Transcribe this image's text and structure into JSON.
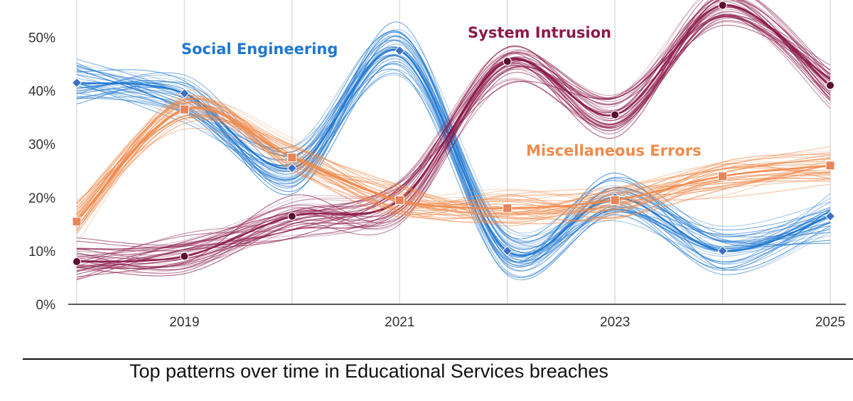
{
  "chart_data": {
    "type": "line",
    "title": "Top patterns over time in Educational Services breaches",
    "xlabel": "",
    "ylabel": "",
    "x": [
      2018,
      2019,
      2020,
      2021,
      2022,
      2023,
      2024,
      2025
    ],
    "x_tick_labels": [
      "2019",
      "2021",
      "2023",
      "2025"
    ],
    "x_tick_values": [
      2019,
      2021,
      2023,
      2025
    ],
    "y_tick_labels": [
      "0%",
      "10%",
      "20%",
      "30%",
      "40%",
      "50%"
    ],
    "y_tick_values": [
      0,
      10,
      20,
      30,
      40,
      50
    ],
    "ylim": [
      0,
      57
    ],
    "grid": "vertical",
    "series": [
      {
        "name": "Social Engineering",
        "color": "#1f77d0",
        "marker": "diamond",
        "values": [
          41.5,
          39.5,
          25.5,
          47.5,
          10,
          20,
          10,
          16.5
        ],
        "spread": 4
      },
      {
        "name": "System Intrusion",
        "color": "#8b1a4a",
        "marker": "circle",
        "values": [
          8,
          9,
          16.5,
          19.5,
          45.5,
          35.5,
          56,
          41
        ],
        "spread": 3.5
      },
      {
        "name": "Miscellaneous Errors",
        "color": "#f08a4b",
        "marker": "square",
        "values": [
          15.5,
          36.5,
          27.5,
          19.5,
          18,
          19.5,
          24,
          26
        ],
        "spread": 3
      }
    ]
  }
}
